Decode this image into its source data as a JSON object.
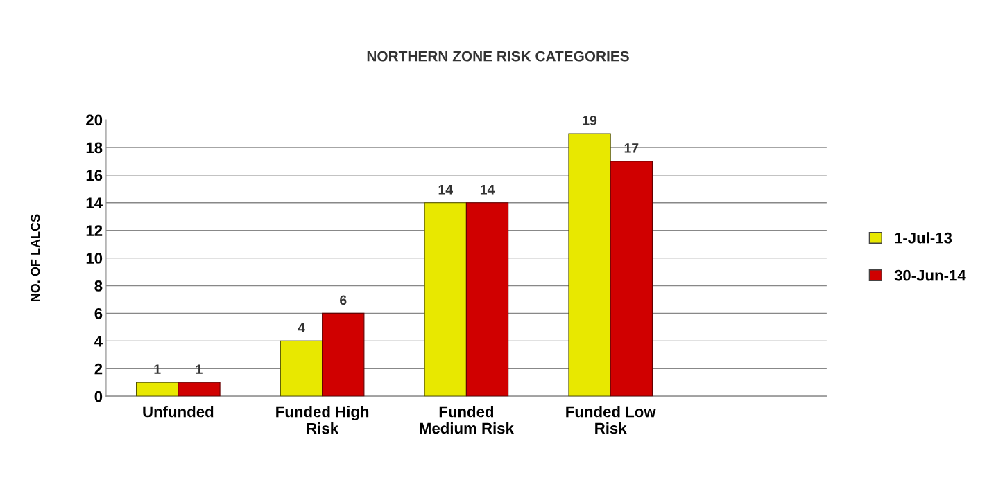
{
  "chart_data": {
    "type": "bar",
    "title": "NORTHERN ZONE RISK CATEGORIES",
    "ylabel": "NO. OF LALCS",
    "categories": [
      "Unfunded",
      "Funded High\nRisk",
      "Funded\nMedium Risk",
      "Funded Low\nRisk",
      null
    ],
    "series": [
      {
        "name": "1-Jul-13",
        "color": "#e8e800",
        "values": [
          1,
          4,
          14,
          19,
          null
        ]
      },
      {
        "name": "30-Jun-14",
        "color": "#d00000",
        "values": [
          1,
          6,
          14,
          17,
          null
        ]
      }
    ],
    "ylim": [
      0,
      20
    ],
    "yticks": [
      0,
      2,
      4,
      6,
      8,
      10,
      12,
      14,
      16,
      18,
      20
    ],
    "grid": "y",
    "legend": "right",
    "data_labels": true
  }
}
